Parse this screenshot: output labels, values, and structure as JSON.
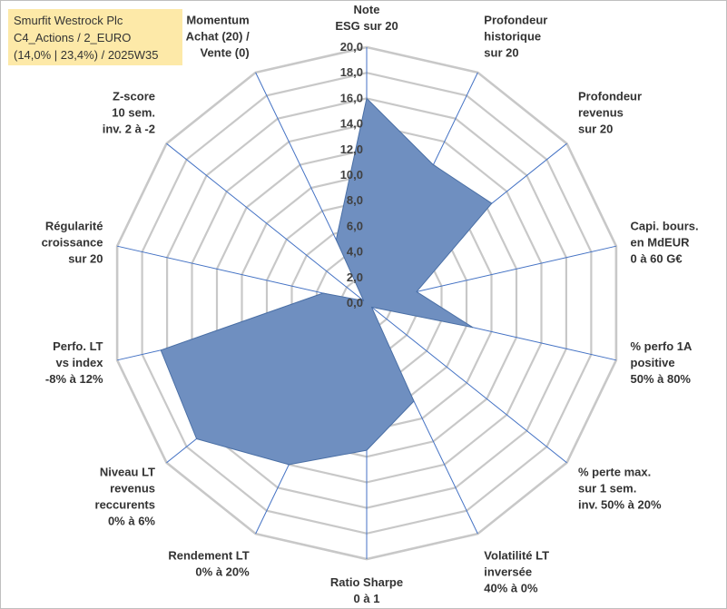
{
  "title_lines": [
    "Smurfit Westrock Plc",
    "C4_Actions / 2_EURO",
    "(14,0% | 23,4%) / 2025W35"
  ],
  "chart_data": {
    "type": "radar",
    "rmin": 0,
    "rmax": 20,
    "ticks": [
      "0,0",
      "2,0",
      "4,0",
      "6,0",
      "8,0",
      "10,0",
      "12,0",
      "14,0",
      "16,0",
      "18,0",
      "20,0"
    ],
    "grid": true,
    "legend": "none",
    "fill_color": "#6f8fc0",
    "line_color": "#4a6fa5",
    "grid_color": "#c8c8c8",
    "spoke_color": "#4472c4",
    "axes": [
      {
        "label": [
          "Note",
          "ESG sur 20"
        ],
        "value": 16.0
      },
      {
        "label": [
          "Profondeur",
          "historique",
          "sur 20"
        ],
        "value": 12.0
      },
      {
        "label": [
          "Profondeur",
          "revenus",
          "sur 20"
        ],
        "value": 12.5
      },
      {
        "label": [
          "Capi. bours.",
          "en MdEUR",
          "0 à 60 G€"
        ],
        "value": 4.0
      },
      {
        "label": [
          "% perfo 1A",
          "positive",
          "50% à 80%"
        ],
        "value": 8.5
      },
      {
        "label": [
          "% perte max.",
          "sur 1 sem.",
          "inv. 50% à 20%"
        ],
        "value": 0.5
      },
      {
        "label": [
          "Volatilité LT",
          "inversée",
          "40% à 0%"
        ],
        "value": 8.5
      },
      {
        "label": [
          "Ratio Sharpe",
          "0 à 1"
        ],
        "value": 11.5
      },
      {
        "label": [
          "Rendement LT",
          "0% à 20%"
        ],
        "value": 14.0
      },
      {
        "label": [
          "Niveau LT",
          "revenus",
          "reccurents",
          "0% à 6%"
        ],
        "value": 17.0
      },
      {
        "label": [
          "Perfo. LT",
          "vs index",
          "-8% à 12%"
        ],
        "value": 16.5
      },
      {
        "label": [
          "Régularité",
          "croissance",
          "sur 20"
        ],
        "value": 3.5
      },
      {
        "label": [
          "Z-score",
          "10 sem.",
          "inv. 2 à -2"
        ],
        "value": 0.3
      },
      {
        "label": [
          "Momentum",
          "Achat (20) /",
          "Vente (0)"
        ],
        "value": 5.5
      }
    ]
  }
}
